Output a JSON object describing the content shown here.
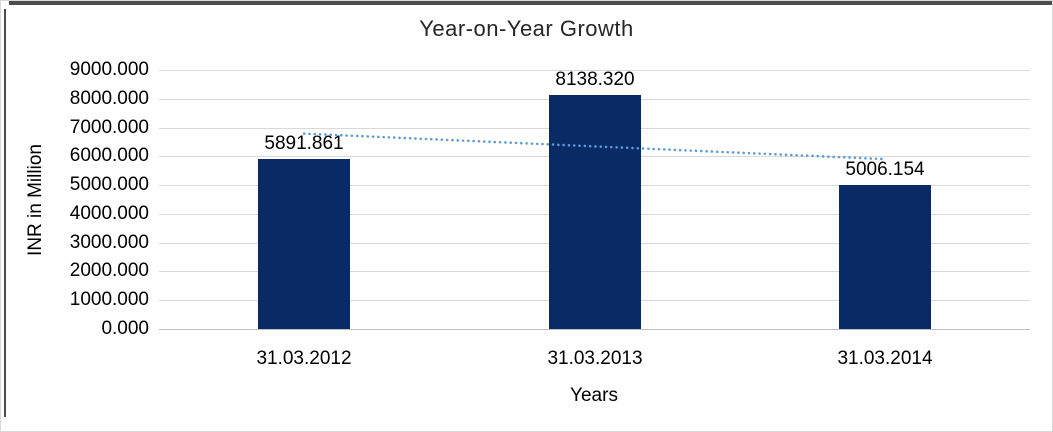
{
  "chart_data": {
    "type": "bar",
    "title": "Year-on-Year Growth",
    "xlabel": "Years",
    "ylabel": "INR in Million",
    "categories": [
      "31.03.2012",
      "31.03.2013",
      "31.03.2014"
    ],
    "values": [
      5891.861,
      8138.32,
      5006.154
    ],
    "value_labels": [
      "5891.861",
      "8138.320",
      "5006.154"
    ],
    "y_ticks": [
      "9000.000",
      "8000.000",
      "7000.000",
      "6000.000",
      "5000.000",
      "4000.000",
      "3000.000",
      "2000.000",
      "1000.000",
      "0.000"
    ],
    "ylim": [
      0,
      9000
    ],
    "grid": true,
    "legend": "none",
    "bar_color": "#0A2A66",
    "gridline_color": "#D9D9D9",
    "text_color": "#000000",
    "trendline": {
      "kind": "linear",
      "style": "dotted",
      "color": "#5B9BD5",
      "start_value": 6788.3,
      "end_value": 5902.6
    }
  }
}
